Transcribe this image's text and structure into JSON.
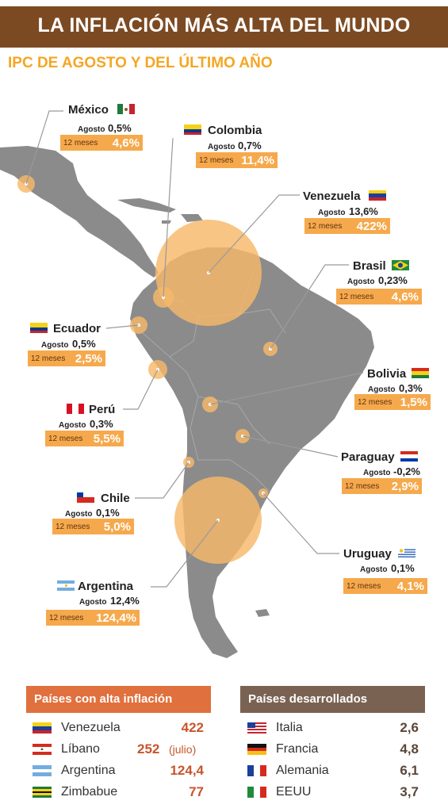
{
  "title": "LA INFLACIÓN MÁS ALTA DEL MUNDO",
  "subtitle": "IPC DE AGOSTO Y DEL ÚLTIMO AÑO",
  "agosto_label": "Agosto",
  "meses_label": "12 meses",
  "colors": {
    "title_bg": "#7c4a22",
    "accent": "#f5a623",
    "land": "#8a8a8a",
    "bubble": "#f6b86a",
    "high_head": "#e0703d",
    "dev_head": "#7a6252"
  },
  "countries": {
    "mexico": {
      "name": "México",
      "agosto": "0,5%",
      "meses12": "4,6%"
    },
    "colombia": {
      "name": "Colombia",
      "agosto": "0,7%",
      "meses12": "11,4%"
    },
    "venezuela": {
      "name": "Venezuela",
      "agosto": "13,6%",
      "meses12": "422%"
    },
    "brasil": {
      "name": "Brasil",
      "agosto": "0,23%",
      "meses12": "4,6%"
    },
    "ecuador": {
      "name": "Ecuador",
      "agosto": "0,5%",
      "meses12": "2,5%"
    },
    "bolivia": {
      "name": "Bolivia",
      "agosto": "0,3%",
      "meses12": "1,5%"
    },
    "peru": {
      "name": "Perú",
      "agosto": "0,3%",
      "meses12": "5,5%"
    },
    "paraguay": {
      "name": "Paraguay",
      "agosto": "-0,2%",
      "meses12": "2,9%"
    },
    "chile": {
      "name": "Chile",
      "agosto": "0,1%",
      "meses12": "5,0%"
    },
    "uruguay": {
      "name": "Uruguay",
      "agosto": "0,1%",
      "meses12": "4,1%"
    },
    "argentina": {
      "name": "Argentina",
      "agosto": "12,4%",
      "meses12": "124,4%"
    }
  },
  "high_inflation": {
    "heading": "Países con alta inflación",
    "rows": [
      {
        "name": "Venezuela",
        "value": "422",
        "note": ""
      },
      {
        "name": "Líbano",
        "value": "252",
        "note": "(julio)"
      },
      {
        "name": "Argentina",
        "value": "124,4",
        "note": ""
      },
      {
        "name": "Zimbabue",
        "value": "77",
        "note": ""
      }
    ]
  },
  "developed": {
    "heading": "Países desarrollados",
    "rows": [
      {
        "name": "Italia",
        "value": "2,6"
      },
      {
        "name": "Francia",
        "value": "4,8"
      },
      {
        "name": "Alemania",
        "value": "6,1"
      },
      {
        "name": "EEUU",
        "value": "3,7"
      }
    ]
  }
}
